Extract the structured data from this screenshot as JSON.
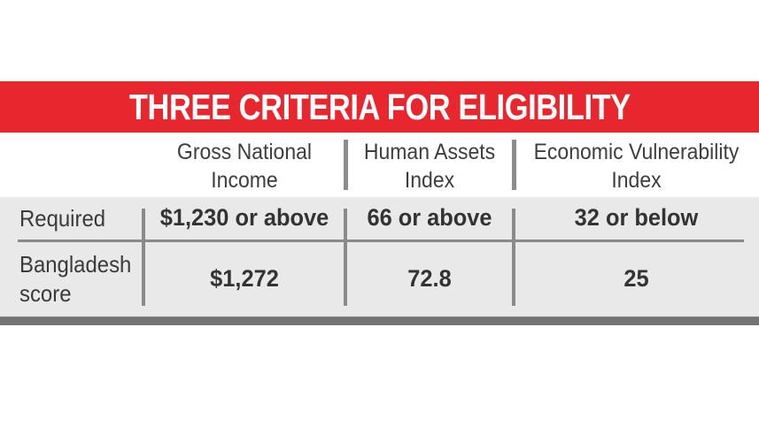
{
  "title": "THREE CRITERIA FOR ELIGIBILITY",
  "colors": {
    "band_red": "#e8262e",
    "row_background": "#e9e9e9",
    "divider_gray": "#8a8a8a",
    "bottom_bar_gray": "#747474",
    "text_dark": "#3a3a3a",
    "title_white": "#ffffff"
  },
  "columns": [
    {
      "line1": "Gross National",
      "line2": "Income"
    },
    {
      "line1": "Human Assets",
      "line2": "Index"
    },
    {
      "line1": "Economic Vulnerability",
      "line2": "Index"
    }
  ],
  "required_row": {
    "label": "Required",
    "gni": "$1,230 or above",
    "hai": "66 or above",
    "evi": "32 or below"
  },
  "bangladesh_row": {
    "label_line1": "Bangladesh",
    "label_line2": "score",
    "gni": "$1,272",
    "hai": "72.8",
    "evi": "25"
  },
  "chart_data": {
    "type": "table",
    "title": "THREE CRITERIA FOR ELIGIBILITY",
    "columns": [
      "",
      "Gross National Income",
      "Human Assets Index",
      "Economic Vulnerability Index"
    ],
    "rows": [
      [
        "Required",
        "$1,230 or above",
        "66 or above",
        "32 or below"
      ],
      [
        "Bangladesh score",
        "$1,272",
        "72.8",
        "25"
      ]
    ],
    "notes": {
      "gni_required_numeric": 1230,
      "gni_bangladesh_numeric": 1272,
      "hai_required_numeric": 66,
      "hai_bangladesh_numeric": 72.8,
      "evi_required_numeric": 32,
      "evi_bangladesh_numeric": 25
    }
  }
}
